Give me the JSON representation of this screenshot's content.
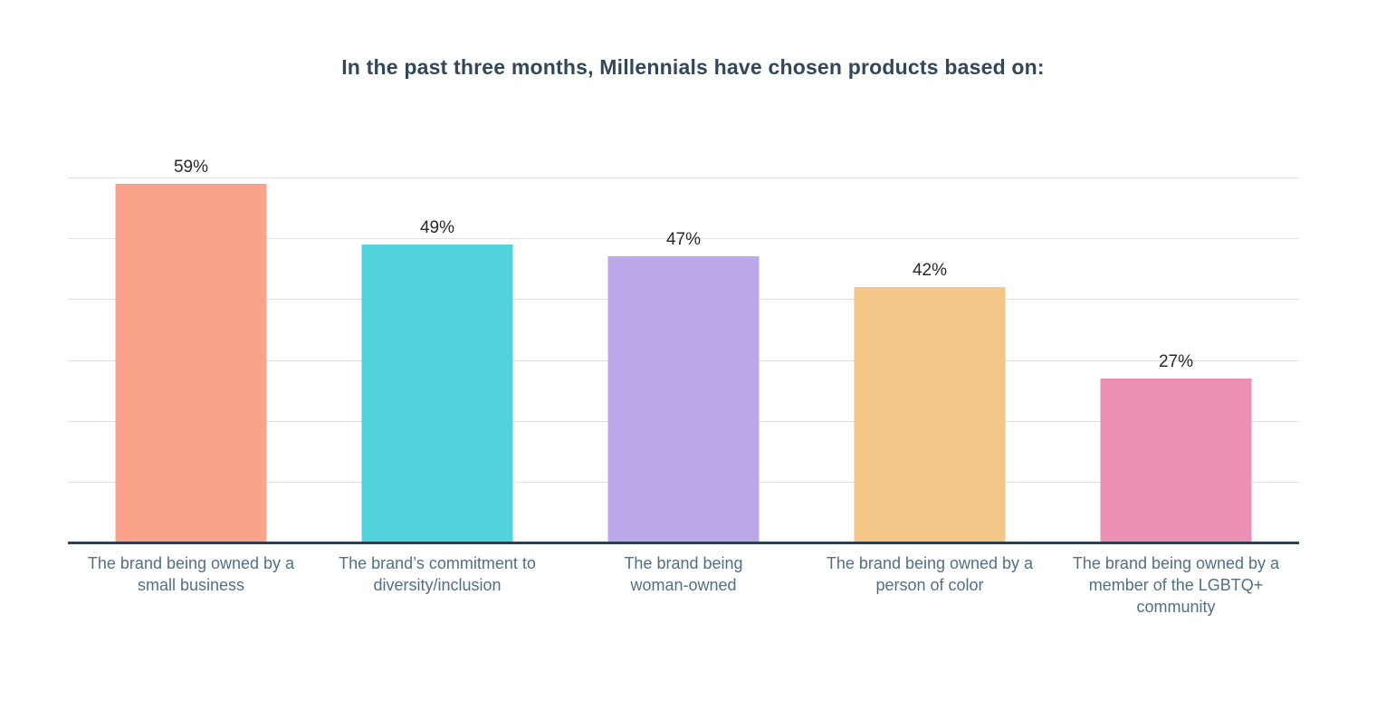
{
  "chart_data": {
    "type": "bar",
    "title": "In the past three months, Millennials have chosen products based on:",
    "categories": [
      "The brand being owned by a small business",
      "The brand’s commitment to diversity/inclusion",
      "The brand being woman-owned",
      "The brand being owned by a person of color",
      "The brand being owned by a member of the LGBTQ+ community"
    ],
    "category_lines": [
      [
        "The brand being owned by a",
        "small business"
      ],
      [
        "The brand’s commitment to",
        "diversity/inclusion"
      ],
      [
        "The brand being",
        "woman-owned"
      ],
      [
        "The brand being owned by a",
        "person of color"
      ],
      [
        "The brand being owned by a",
        "member of the LGBTQ+",
        "community"
      ]
    ],
    "values": [
      59,
      49,
      47,
      42,
      27
    ],
    "value_labels": [
      "59%",
      "49%",
      "47%",
      "42%",
      "27%"
    ],
    "bar_colors": [
      "#faa28c",
      "#52d3db",
      "#bba8e8",
      "#f4c789",
      "#e990b4"
    ],
    "xlabel": "",
    "ylabel": "",
    "ylim": [
      0,
      60
    ],
    "gridline_step": 10,
    "grid": "horizontal",
    "y_tick_labels_visible": false,
    "legend_position": "none",
    "colors": {
      "title": "#33475b",
      "category_label": "#546e84",
      "value_label": "#26282b",
      "gridline": "#e1e1e5",
      "axis_line": "#2e3f50",
      "background": "#ffffff"
    }
  }
}
